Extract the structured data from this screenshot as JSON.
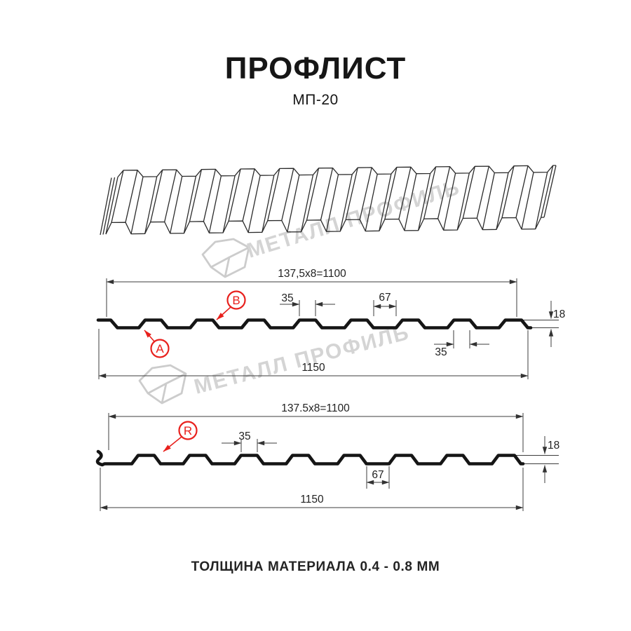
{
  "title": {
    "main": "ПРОФЛИСТ",
    "model": "МП-20"
  },
  "footer": {
    "text": "ТОЛЩИНА МАТЕРИАЛА 0.4 - 0.8 ММ"
  },
  "watermark": {
    "text": "МЕТАЛЛ ПРОФИЛЬ"
  },
  "diagram_top": {
    "module_dim": "137,5x8=1100",
    "overall_dim": "1150",
    "rib_top_dim": "35",
    "rib_bottom_dim": "35",
    "valley_dim": "67",
    "height_dim": "18",
    "label_a": "A",
    "label_b": "B"
  },
  "diagram_bottom": {
    "module_dim": "137.5x8=1100",
    "overall_dim": "1150",
    "rib_top_dim": "35",
    "valley_dim": "67",
    "height_dim": "18",
    "label_r": "R"
  },
  "colors": {
    "ink": "#161616",
    "accent_red": "#e8201c",
    "dim_line": "#3c3c3c",
    "watermark": "#d4d4d4"
  }
}
